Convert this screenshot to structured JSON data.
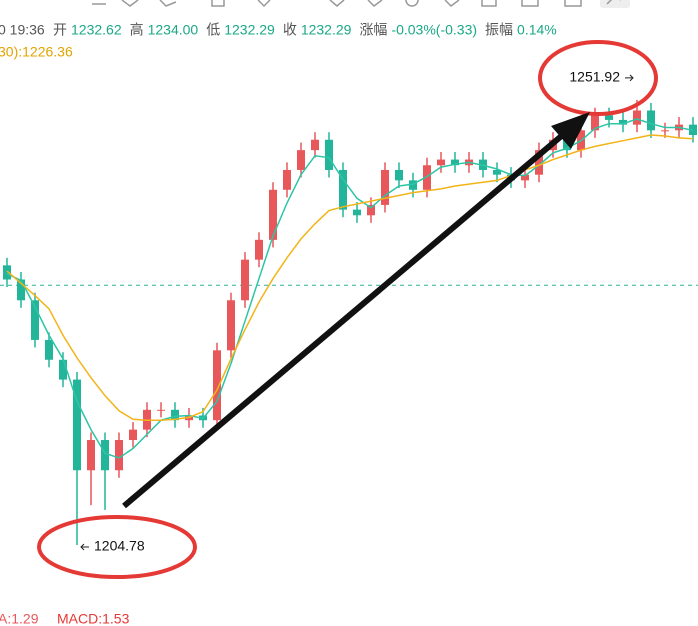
{
  "header": {
    "time": "0 19:36",
    "fields": [
      {
        "label": "开",
        "value": "1232.62"
      },
      {
        "label": "高",
        "value": "1234.00"
      },
      {
        "label": "低",
        "value": "1232.29"
      },
      {
        "label": "收",
        "value": "1232.29"
      },
      {
        "label": "涨幅",
        "value": "-0.03%(-0.33)"
      },
      {
        "label": "振幅",
        "value": "0.14%"
      }
    ],
    "ma_label": "30):1226.36"
  },
  "footer": {
    "indicator": "A:1.29",
    "macd": "MACD:1.53"
  },
  "chart_data": {
    "type": "candlestick",
    "categories": [
      null,
      null,
      null,
      null,
      null,
      null,
      null,
      null,
      null,
      null,
      null,
      null,
      null,
      null,
      null,
      null,
      null,
      null,
      null,
      null,
      null,
      null,
      null,
      null,
      null,
      null,
      null,
      null,
      null,
      null,
      null,
      null,
      null,
      null,
      null,
      null,
      null,
      null,
      null,
      null,
      null,
      null,
      null,
      null,
      null,
      null,
      null,
      null,
      null,
      null
    ],
    "ylim": [
      1197.9,
      1262.5
    ],
    "up_color": "#e8575a",
    "down_color": "#22b59a",
    "reference_line": 1232.29,
    "candles": {
      "open": [
        1234.4,
        1232.9,
        1230.7,
        1226.5,
        1224.4,
        1222.3,
        1212.7,
        1215.9,
        1212.7,
        1215.9,
        1217.0,
        1219.1,
        1219.1,
        1218.0,
        1218.5,
        1218.0,
        1225.4,
        1230.7,
        1235.0,
        1237.1,
        1242.4,
        1244.5,
        1246.6,
        1247.7,
        1244.5,
        1240.3,
        1239.7,
        1240.8,
        1244.5,
        1243.4,
        1242.4,
        1245.0,
        1245.6,
        1245.0,
        1245.6,
        1244.5,
        1244.0,
        1243.4,
        1244.0,
        1246.6,
        1247.7,
        1246.6,
        1248.7,
        1250.3,
        1249.8,
        1249.3,
        1250.8,
        1248.7,
        1248.7,
        1249.3
      ],
      "high": [
        1235.2,
        1233.7,
        1231.5,
        1227.3,
        1225.2,
        1223.1,
        1216.7,
        1216.7,
        1216.7,
        1217.8,
        1219.9,
        1219.9,
        1219.9,
        1219.3,
        1219.3,
        1226.2,
        1231.5,
        1235.8,
        1237.9,
        1243.2,
        1245.3,
        1247.4,
        1248.5,
        1248.5,
        1245.3,
        1241.1,
        1241.6,
        1245.3,
        1245.3,
        1244.2,
        1245.8,
        1246.4,
        1246.4,
        1246.4,
        1246.4,
        1245.3,
        1244.8,
        1244.8,
        1247.4,
        1248.5,
        1248.5,
        1249.5,
        1251.1,
        1251.1,
        1250.6,
        1251.92,
        1251.6,
        1249.5,
        1250.1,
        1250.1
      ],
      "low": [
        1232.1,
        1229.9,
        1225.7,
        1223.6,
        1221.5,
        1204.78,
        1209.0,
        1208.5,
        1211.9,
        1215.1,
        1216.2,
        1218.3,
        1217.2,
        1217.2,
        1217.2,
        1217.2,
        1224.6,
        1229.9,
        1234.2,
        1236.3,
        1241.6,
        1243.7,
        1245.8,
        1243.7,
        1239.5,
        1238.9,
        1238.9,
        1240.0,
        1242.6,
        1241.6,
        1241.6,
        1244.2,
        1244.2,
        1244.2,
        1243.7,
        1243.2,
        1242.6,
        1242.6,
        1243.2,
        1245.8,
        1245.8,
        1245.8,
        1247.9,
        1249.0,
        1248.5,
        1248.5,
        1247.9,
        1247.9,
        1247.9,
        1247.4
      ],
      "close": [
        1232.9,
        1230.7,
        1226.5,
        1224.4,
        1222.3,
        1212.7,
        1215.9,
        1212.7,
        1215.9,
        1217.0,
        1219.1,
        1219.1,
        1218.0,
        1218.5,
        1218.0,
        1225.4,
        1230.7,
        1235.0,
        1237.1,
        1242.4,
        1244.5,
        1246.6,
        1247.7,
        1244.5,
        1240.3,
        1239.7,
        1240.8,
        1244.5,
        1243.4,
        1242.4,
        1245.0,
        1245.6,
        1245.0,
        1245.6,
        1244.5,
        1244.0,
        1243.4,
        1244.0,
        1246.6,
        1247.7,
        1246.6,
        1248.7,
        1250.3,
        1249.8,
        1249.3,
        1250.8,
        1248.7,
        1248.7,
        1249.3,
        1248.2
      ]
    },
    "series": [
      {
        "color": "#2ec4a6",
        "values": [
          1233.5,
          1232.8,
          1230.0,
          1227.0,
          1224.5,
          1220.0,
          1217.0,
          1214.5,
          1214.0,
          1215.0,
          1216.5,
          1218.0,
          1218.4,
          1218.5,
          1218.2,
          1220.0,
          1224.0,
          1228.5,
          1233.0,
          1237.5,
          1241.0,
          1244.0,
          1246.0,
          1245.8,
          1243.5,
          1241.5,
          1240.5,
          1241.8,
          1242.8,
          1243.0,
          1243.8,
          1244.8,
          1245.1,
          1245.3,
          1245.0,
          1244.6,
          1244.0,
          1243.9,
          1245.0,
          1246.3,
          1246.8,
          1247.6,
          1248.9,
          1249.4,
          1249.4,
          1249.9,
          1249.4,
          1249.0,
          1249.0,
          1248.7
        ]
      },
      {
        "color": "#f2b418",
        "values": [
          1233.8,
          1232.5,
          1231.2,
          1229.8,
          1227.0,
          1224.6,
          1222.5,
          1220.6,
          1219.0,
          1218.1,
          1218.0,
          1218.0,
          1218.1,
          1218.3,
          1218.9,
          1221.2,
          1224.5,
          1227.6,
          1230.5,
          1233.0,
          1235.2,
          1237.2,
          1238.8,
          1240.2,
          1240.6,
          1240.9,
          1241.2,
          1241.5,
          1241.8,
          1242.1,
          1242.3,
          1242.5,
          1242.8,
          1243.0,
          1243.2,
          1243.4,
          1243.9,
          1244.5,
          1245.0,
          1245.6,
          1246.1,
          1246.6,
          1247.0,
          1247.3,
          1247.6,
          1247.9,
          1248.2,
          1248.1,
          1247.9,
          1247.8
        ]
      }
    ],
    "annotations": [
      {
        "candle": 5,
        "price": "low",
        "side": "right"
      },
      {
        "candle": 45,
        "price": "high",
        "side": "left"
      }
    ]
  }
}
